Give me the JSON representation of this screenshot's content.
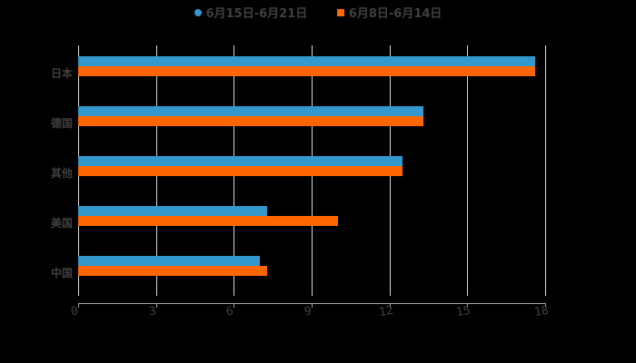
{
  "legend": {
    "series1": "6月15日-6月21日",
    "series2": "6月8日-6月14日"
  },
  "colors": {
    "series1": "#3399CC",
    "series2": "#FF6600",
    "background": "#000000",
    "text": "#404040",
    "grid": "#D9D9D9"
  },
  "axis": {
    "ticks": [
      "0",
      "3",
      "6",
      "9",
      "12",
      "15",
      "18"
    ]
  },
  "categories": [
    "日本",
    "德国",
    "其他",
    "美国",
    "中国"
  ],
  "chart_data": {
    "type": "bar",
    "orientation": "horizontal",
    "title": "",
    "xlabel": "",
    "ylabel": "",
    "categories": [
      "日本",
      "德国",
      "其他",
      "美国",
      "中国"
    ],
    "series": [
      {
        "name": "6月15日-6月21日",
        "color": "#3399CC",
        "values": [
          17.6,
          13.3,
          12.5,
          7.3,
          7.0
        ]
      },
      {
        "name": "6月8日-6月14日",
        "color": "#FF6600",
        "values": [
          17.6,
          13.3,
          12.5,
          10.0,
          7.3
        ]
      }
    ],
    "xlim": [
      0,
      18
    ],
    "xticks": [
      0,
      3,
      6,
      9,
      12,
      15,
      18
    ],
    "grid": "vertical",
    "legend_position": "top"
  }
}
